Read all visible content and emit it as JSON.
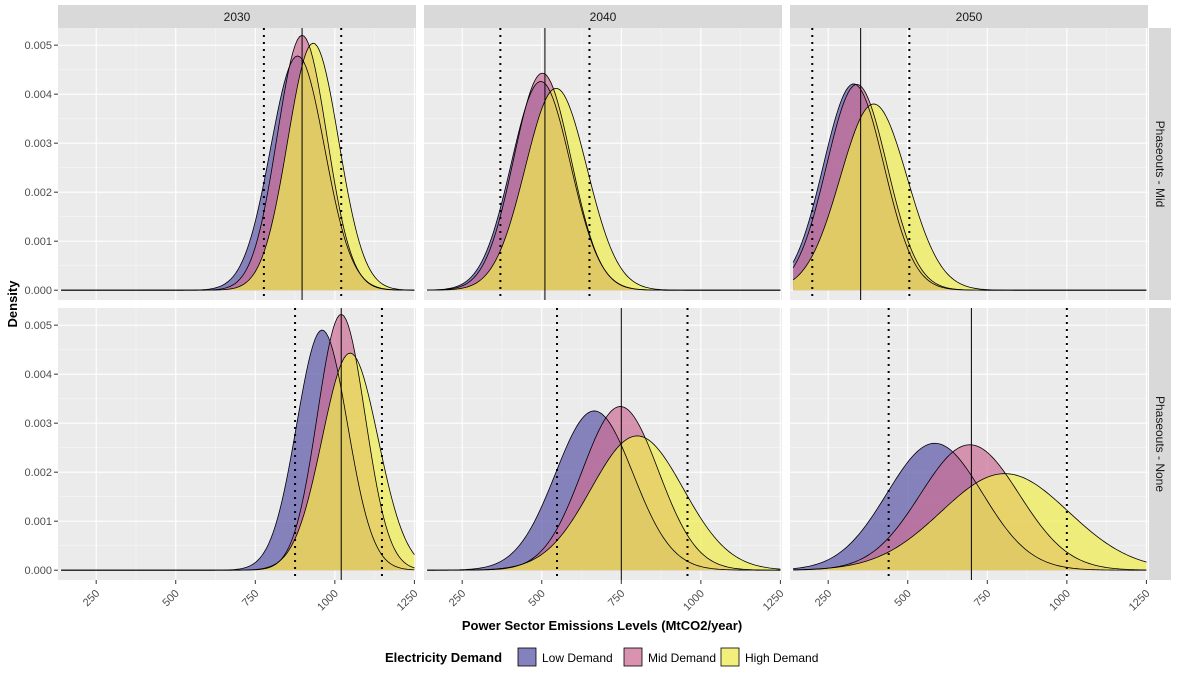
{
  "chart_data": {
    "type": "area",
    "subtype": "density-facets",
    "xlabel": "Power Sector Emissions Levels (MtCO2/year)",
    "ylabel": "Density",
    "xlim": [
      130,
      1255
    ],
    "ylim": [
      -0.0002,
      0.00535
    ],
    "x_ticks": [
      250,
      500,
      750,
      1000,
      1250
    ],
    "y_ticks": [
      0.0,
      0.001,
      0.002,
      0.003,
      0.004,
      0.005
    ],
    "y_tick_labels": [
      "0.000",
      "0.001",
      "0.002",
      "0.003",
      "0.004",
      "0.005"
    ],
    "col_facets": [
      "2030",
      "2040",
      "2050"
    ],
    "row_facets": [
      "Phaseouts - Mid",
      "Phaseouts - None"
    ],
    "legend": {
      "title": "Electricity Demand",
      "position": "bottom",
      "entries": [
        "Low Demand",
        "Mid Demand",
        "High Demand"
      ]
    },
    "series_colors": {
      "Low Demand": "#5b57a8",
      "Mid Demand": "#cc6f97",
      "High Demand": "#eeeb4e"
    },
    "overlap_color": "#c9a64f",
    "grid": true,
    "panels": [
      {
        "row": "Phaseouts - Mid",
        "col": "2030",
        "x_range": [
          140,
          1250
        ],
        "series": [
          {
            "name": "Low Demand",
            "peak_x": 883,
            "peak_y": 0.00478,
            "sd": 85
          },
          {
            "name": "Mid Demand",
            "peak_x": 897,
            "peak_y": 0.0052,
            "sd": 78
          },
          {
            "name": "High Demand",
            "peak_x": 932,
            "peak_y": 0.00504,
            "sd": 80
          }
        ],
        "median_line": 897,
        "dashed_lines": [
          777,
          1020
        ]
      },
      {
        "row": "Phaseouts - Mid",
        "col": "2040",
        "x_range": [
          140,
          1250
        ],
        "series": [
          {
            "name": "Low Demand",
            "peak_x": 497,
            "peak_y": 0.00426,
            "sd": 93
          },
          {
            "name": "Mid Demand",
            "peak_x": 502,
            "peak_y": 0.00443,
            "sd": 90
          },
          {
            "name": "High Demand",
            "peak_x": 545,
            "peak_y": 0.00412,
            "sd": 97
          }
        ],
        "median_line": 510,
        "dashed_lines": [
          370,
          650
        ]
      },
      {
        "row": "Phaseouts - Mid",
        "col": "2050",
        "x_range": [
          140,
          1250
        ],
        "series": [
          {
            "name": "Low Demand",
            "peak_x": 330,
            "peak_y": 0.00421,
            "sd": 95
          },
          {
            "name": "Mid Demand",
            "peak_x": 340,
            "peak_y": 0.0042,
            "sd": 95
          },
          {
            "name": "High Demand",
            "peak_x": 393,
            "peak_y": 0.0038,
            "sd": 105
          }
        ],
        "median_line": 352,
        "dashed_lines": [
          200,
          505
        ]
      },
      {
        "row": "Phaseouts - None",
        "col": "2030",
        "x_range": [
          140,
          1250
        ],
        "series": [
          {
            "name": "Low Demand",
            "peak_x": 960,
            "peak_y": 0.0049,
            "sd": 80
          },
          {
            "name": "Mid Demand",
            "peak_x": 1020,
            "peak_y": 0.00522,
            "sd": 75
          },
          {
            "name": "High Demand",
            "peak_x": 1048,
            "peak_y": 0.00443,
            "sd": 88
          }
        ],
        "median_line": 1020,
        "dashed_lines": [
          875,
          1148
        ]
      },
      {
        "row": "Phaseouts - None",
        "col": "2040",
        "x_range": [
          140,
          1250
        ],
        "series": [
          {
            "name": "Low Demand",
            "peak_x": 665,
            "peak_y": 0.00325,
            "sd": 122
          },
          {
            "name": "Mid Demand",
            "peak_x": 747,
            "peak_y": 0.00334,
            "sd": 120
          },
          {
            "name": "High Demand",
            "peak_x": 800,
            "peak_y": 0.00274,
            "sd": 145
          }
        ],
        "median_line": 750,
        "dashed_lines": [
          548,
          958
        ]
      },
      {
        "row": "Phaseouts - None",
        "col": "2050",
        "x_range": [
          140,
          1250
        ],
        "series": [
          {
            "name": "Low Demand",
            "peak_x": 585,
            "peak_y": 0.00259,
            "sd": 150
          },
          {
            "name": "Mid Demand",
            "peak_x": 695,
            "peak_y": 0.00256,
            "sd": 155
          },
          {
            "name": "High Demand",
            "peak_x": 805,
            "peak_y": 0.00197,
            "sd": 200
          }
        ],
        "median_line": 700,
        "dashed_lines": [
          440,
          1000
        ]
      }
    ]
  }
}
